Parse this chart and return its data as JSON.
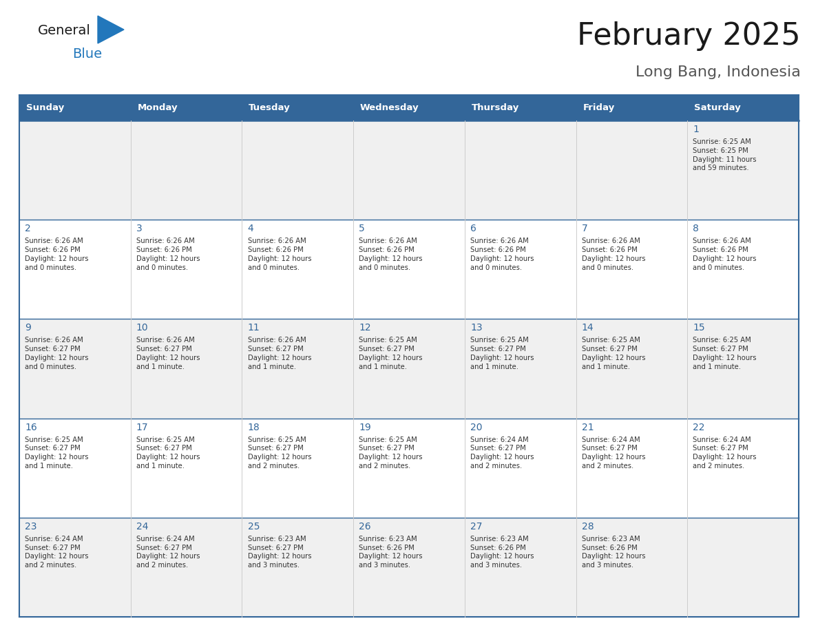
{
  "title": "February 2025",
  "subtitle": "Long Bang, Indonesia",
  "days_of_week": [
    "Sunday",
    "Monday",
    "Tuesday",
    "Wednesday",
    "Thursday",
    "Friday",
    "Saturday"
  ],
  "header_bg_color": "#336699",
  "header_text_color": "#FFFFFF",
  "cell_bg_color_light": "#F0F0F0",
  "cell_bg_color_white": "#FFFFFF",
  "row_line_color": "#336699",
  "col_line_color": "#CCCCCC",
  "day_number_color": "#336699",
  "cell_text_color": "#333333",
  "title_color": "#1a1a1a",
  "subtitle_color": "#555555",
  "logo_general_color": "#1a1a1a",
  "logo_blue_color": "#2277BB",
  "logo_triangle_color": "#2277BB",
  "weeks": [
    [
      {
        "day": null,
        "info": null
      },
      {
        "day": null,
        "info": null
      },
      {
        "day": null,
        "info": null
      },
      {
        "day": null,
        "info": null
      },
      {
        "day": null,
        "info": null
      },
      {
        "day": null,
        "info": null
      },
      {
        "day": 1,
        "info": "Sunrise: 6:25 AM\nSunset: 6:25 PM\nDaylight: 11 hours\nand 59 minutes."
      }
    ],
    [
      {
        "day": 2,
        "info": "Sunrise: 6:26 AM\nSunset: 6:26 PM\nDaylight: 12 hours\nand 0 minutes."
      },
      {
        "day": 3,
        "info": "Sunrise: 6:26 AM\nSunset: 6:26 PM\nDaylight: 12 hours\nand 0 minutes."
      },
      {
        "day": 4,
        "info": "Sunrise: 6:26 AM\nSunset: 6:26 PM\nDaylight: 12 hours\nand 0 minutes."
      },
      {
        "day": 5,
        "info": "Sunrise: 6:26 AM\nSunset: 6:26 PM\nDaylight: 12 hours\nand 0 minutes."
      },
      {
        "day": 6,
        "info": "Sunrise: 6:26 AM\nSunset: 6:26 PM\nDaylight: 12 hours\nand 0 minutes."
      },
      {
        "day": 7,
        "info": "Sunrise: 6:26 AM\nSunset: 6:26 PM\nDaylight: 12 hours\nand 0 minutes."
      },
      {
        "day": 8,
        "info": "Sunrise: 6:26 AM\nSunset: 6:26 PM\nDaylight: 12 hours\nand 0 minutes."
      }
    ],
    [
      {
        "day": 9,
        "info": "Sunrise: 6:26 AM\nSunset: 6:27 PM\nDaylight: 12 hours\nand 0 minutes."
      },
      {
        "day": 10,
        "info": "Sunrise: 6:26 AM\nSunset: 6:27 PM\nDaylight: 12 hours\nand 1 minute."
      },
      {
        "day": 11,
        "info": "Sunrise: 6:26 AM\nSunset: 6:27 PM\nDaylight: 12 hours\nand 1 minute."
      },
      {
        "day": 12,
        "info": "Sunrise: 6:25 AM\nSunset: 6:27 PM\nDaylight: 12 hours\nand 1 minute."
      },
      {
        "day": 13,
        "info": "Sunrise: 6:25 AM\nSunset: 6:27 PM\nDaylight: 12 hours\nand 1 minute."
      },
      {
        "day": 14,
        "info": "Sunrise: 6:25 AM\nSunset: 6:27 PM\nDaylight: 12 hours\nand 1 minute."
      },
      {
        "day": 15,
        "info": "Sunrise: 6:25 AM\nSunset: 6:27 PM\nDaylight: 12 hours\nand 1 minute."
      }
    ],
    [
      {
        "day": 16,
        "info": "Sunrise: 6:25 AM\nSunset: 6:27 PM\nDaylight: 12 hours\nand 1 minute."
      },
      {
        "day": 17,
        "info": "Sunrise: 6:25 AM\nSunset: 6:27 PM\nDaylight: 12 hours\nand 1 minute."
      },
      {
        "day": 18,
        "info": "Sunrise: 6:25 AM\nSunset: 6:27 PM\nDaylight: 12 hours\nand 2 minutes."
      },
      {
        "day": 19,
        "info": "Sunrise: 6:25 AM\nSunset: 6:27 PM\nDaylight: 12 hours\nand 2 minutes."
      },
      {
        "day": 20,
        "info": "Sunrise: 6:24 AM\nSunset: 6:27 PM\nDaylight: 12 hours\nand 2 minutes."
      },
      {
        "day": 21,
        "info": "Sunrise: 6:24 AM\nSunset: 6:27 PM\nDaylight: 12 hours\nand 2 minutes."
      },
      {
        "day": 22,
        "info": "Sunrise: 6:24 AM\nSunset: 6:27 PM\nDaylight: 12 hours\nand 2 minutes."
      }
    ],
    [
      {
        "day": 23,
        "info": "Sunrise: 6:24 AM\nSunset: 6:27 PM\nDaylight: 12 hours\nand 2 minutes."
      },
      {
        "day": 24,
        "info": "Sunrise: 6:24 AM\nSunset: 6:27 PM\nDaylight: 12 hours\nand 2 minutes."
      },
      {
        "day": 25,
        "info": "Sunrise: 6:23 AM\nSunset: 6:27 PM\nDaylight: 12 hours\nand 3 minutes."
      },
      {
        "day": 26,
        "info": "Sunrise: 6:23 AM\nSunset: 6:26 PM\nDaylight: 12 hours\nand 3 minutes."
      },
      {
        "day": 27,
        "info": "Sunrise: 6:23 AM\nSunset: 6:26 PM\nDaylight: 12 hours\nand 3 minutes."
      },
      {
        "day": 28,
        "info": "Sunrise: 6:23 AM\nSunset: 6:26 PM\nDaylight: 12 hours\nand 3 minutes."
      },
      {
        "day": null,
        "info": null
      }
    ]
  ],
  "fig_width": 11.88,
  "fig_height": 9.18,
  "dpi": 100
}
